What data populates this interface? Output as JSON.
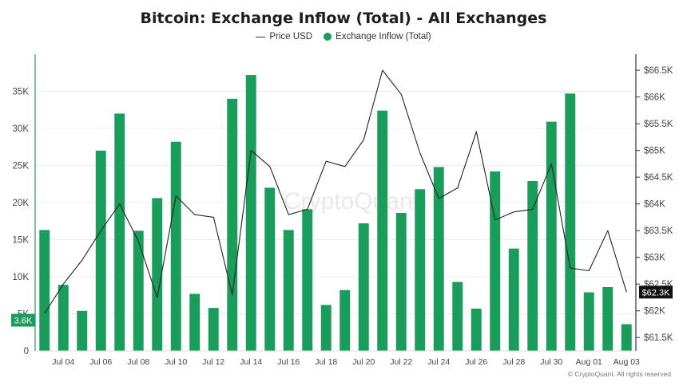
{
  "chart_data": {
    "type": "bar",
    "title": "Bitcoin: Exchange Inflow (Total) - All Exchanges",
    "xlabel": "",
    "ylabel": "",
    "x": [
      "Jul 03",
      "Jul 04",
      "Jul 05",
      "Jul 06",
      "Jul 07",
      "Jul 08",
      "Jul 09",
      "Jul 10",
      "Jul 11",
      "Jul 12",
      "Jul 13",
      "Jul 14",
      "Jul 15",
      "Jul 16",
      "Jul 17",
      "Jul 18",
      "Jul 19",
      "Jul 20",
      "Jul 21",
      "Jul 22",
      "Jul 23",
      "Jul 24",
      "Jul 25",
      "Jul 26",
      "Jul 27",
      "Jul 28",
      "Jul 29",
      "Jul 30",
      "Jul 31",
      "Aug 01",
      "Aug 02",
      "Aug 03"
    ],
    "x_tick_labels": [
      "Jul 04",
      "Jul 06",
      "Jul 08",
      "Jul 10",
      "Jul 12",
      "Jul 14",
      "Jul 16",
      "Jul 18",
      "Jul 20",
      "Jul 22",
      "Jul 24",
      "Jul 26",
      "Jul 28",
      "Jul 30",
      "Aug 01",
      "Aug 03"
    ],
    "series": [
      {
        "name": "Exchange Inflow (Total)",
        "type": "bar",
        "axis": "left",
        "color": "#1a9c5b",
        "values": [
          16300,
          8900,
          5400,
          27000,
          32000,
          16200,
          20600,
          28200,
          7700,
          5800,
          34000,
          37200,
          22000,
          16300,
          19100,
          6200,
          8200,
          17200,
          32400,
          18600,
          21800,
          24800,
          9300,
          5700,
          24200,
          13800,
          22900,
          30900,
          34700,
          7900,
          8600,
          3600
        ]
      },
      {
        "name": "Price USD",
        "type": "line",
        "axis": "right",
        "color": "#222222",
        "values": [
          61950,
          62500,
          62950,
          63500,
          64000,
          63300,
          62250,
          64150,
          63800,
          63750,
          62300,
          65000,
          64700,
          63800,
          63900,
          64800,
          64700,
          65200,
          66500,
          66050,
          64950,
          64100,
          64300,
          65350,
          63700,
          63850,
          63900,
          64750,
          62800,
          62750,
          63500,
          62350
        ]
      }
    ],
    "y_left": {
      "ylim": [
        0,
        40000
      ],
      "ticks": [
        0,
        5000,
        10000,
        15000,
        20000,
        25000,
        30000,
        35000
      ],
      "tick_labels": [
        "0",
        "5K",
        "10K",
        "15K",
        "20K",
        "25K",
        "30K",
        "35K"
      ]
    },
    "y_right": {
      "ylim": [
        61250,
        66800
      ],
      "ticks": [
        61500,
        62000,
        62500,
        63000,
        63500,
        64000,
        64500,
        65000,
        65500,
        66000,
        66500
      ],
      "tick_labels": [
        "$61.5K",
        "$62K",
        "$62.5K",
        "$63K",
        "$63.5K",
        "$64K",
        "$64.5K",
        "$65K",
        "$65.5K",
        "$66K",
        "$66.5K"
      ]
    },
    "last_value_labels": {
      "left": "3.6K",
      "right": "$62.3K"
    },
    "grid": true,
    "legend_position": "top-center",
    "legend": [
      {
        "label": "Price USD",
        "color": "#222222",
        "kind": "line"
      },
      {
        "label": "Exchange Inflow (Total)",
        "color": "#1a9c5b",
        "kind": "dot"
      }
    ],
    "watermark": "CryptoQuant",
    "copyright": "© CryptoQuant. All rights reserved"
  }
}
